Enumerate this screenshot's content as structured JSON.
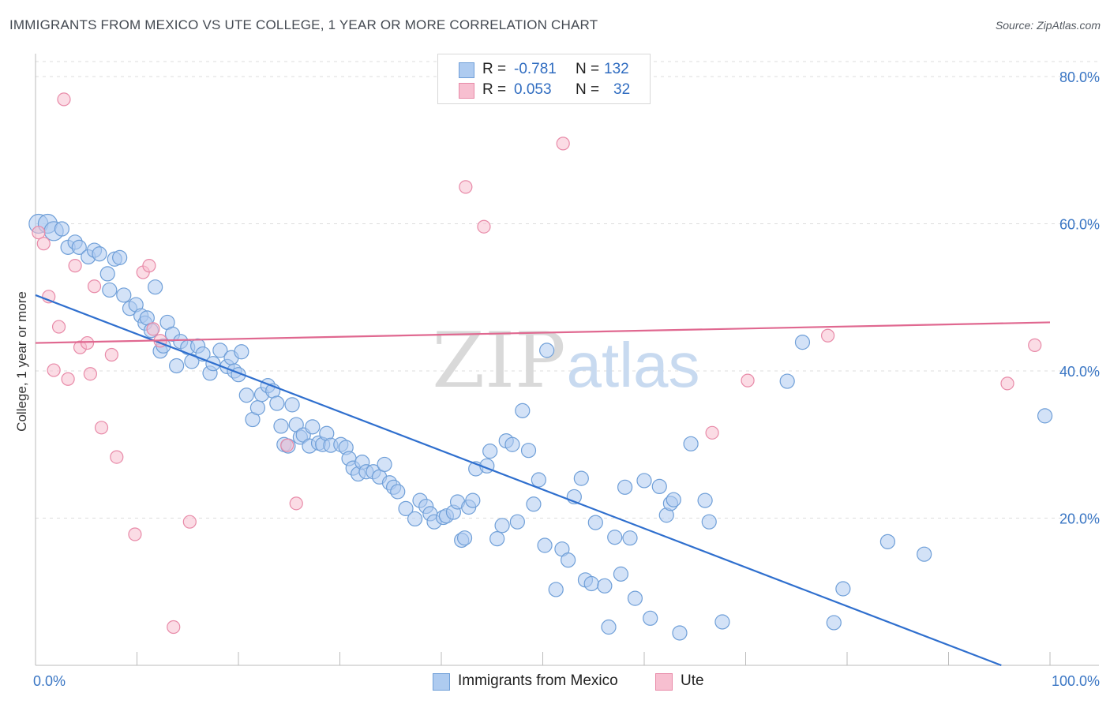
{
  "header": {
    "title": "IMMIGRANTS FROM MEXICO VS UTE COLLEGE, 1 YEAR OR MORE CORRELATION CHART",
    "source": "Source: ZipAtlas.com"
  },
  "watermark": {
    "part1": "ZIP",
    "part2": "atlas"
  },
  "legend": {
    "rows": [
      {
        "r_label": "R =",
        "r_value": "-0.781",
        "n_label": "N =",
        "n_value": "132"
      },
      {
        "r_label": "R =",
        "r_value": "0.053",
        "n_label": "N =",
        "n_value": "32"
      }
    ]
  },
  "bottom_legend": {
    "items": [
      {
        "label": "Immigrants from Mexico"
      },
      {
        "label": "Ute"
      }
    ]
  },
  "colors": {
    "blue_fill": "#aecbf0",
    "blue_stroke": "#6f9fd8",
    "blue_line": "#2f6fce",
    "pink_fill": "#f7bfd0",
    "pink_stroke": "#e88aa8",
    "pink_line": "#e06890",
    "tick_text": "#3a76c4",
    "grid": "#dddddd"
  },
  "chart_data": {
    "type": "scatter",
    "title": "IMMIGRANTS FROM MEXICO VS UTE COLLEGE, 1 YEAR OR MORE CORRELATION CHART",
    "xlabel": "",
    "ylabel": "College, 1 year or more",
    "xlim": [
      0,
      100
    ],
    "ylim": [
      0,
      80
    ],
    "x_ticks": [
      "0.0%",
      "100.0%"
    ],
    "y_ticks": [
      {
        "value": 20,
        "label": "20.0%"
      },
      {
        "value": 40,
        "label": "40.0%"
      },
      {
        "value": 60,
        "label": "60.0%"
      },
      {
        "value": 80,
        "label": "80.0%"
      }
    ],
    "grid": "horizontal-dashed",
    "legend_position": "top-center",
    "series": [
      {
        "name": "Immigrants from Mexico",
        "color": "#aecbf0",
        "trend": {
          "x": [
            0,
            95.2
          ],
          "y": [
            50.3,
            0
          ]
        },
        "points": [
          [
            0.3,
            60.0
          ],
          [
            1.2,
            60.0
          ],
          [
            1.8,
            59.0
          ],
          [
            2.6,
            59.3
          ],
          [
            3.2,
            56.8
          ],
          [
            3.9,
            57.5
          ],
          [
            4.3,
            56.8
          ],
          [
            5.2,
            55.5
          ],
          [
            5.8,
            56.4
          ],
          [
            6.3,
            55.9
          ],
          [
            7.1,
            53.2
          ],
          [
            7.3,
            51.0
          ],
          [
            7.8,
            55.2
          ],
          [
            8.3,
            55.4
          ],
          [
            8.7,
            50.3
          ],
          [
            9.3,
            48.5
          ],
          [
            9.9,
            49.0
          ],
          [
            10.4,
            47.5
          ],
          [
            10.8,
            46.5
          ],
          [
            11.0,
            47.2
          ],
          [
            11.4,
            45.5
          ],
          [
            11.8,
            51.4
          ],
          [
            12.3,
            42.7
          ],
          [
            12.6,
            43.4
          ],
          [
            13.0,
            46.6
          ],
          [
            13.5,
            45.0
          ],
          [
            13.9,
            40.7
          ],
          [
            14.3,
            44.0
          ],
          [
            15.0,
            43.2
          ],
          [
            15.4,
            41.3
          ],
          [
            16.0,
            43.4
          ],
          [
            16.5,
            42.3
          ],
          [
            17.2,
            39.7
          ],
          [
            17.5,
            41.0
          ],
          [
            18.2,
            42.8
          ],
          [
            18.9,
            40.6
          ],
          [
            19.3,
            41.8
          ],
          [
            19.6,
            40.0
          ],
          [
            20.0,
            39.5
          ],
          [
            20.3,
            42.6
          ],
          [
            20.8,
            36.7
          ],
          [
            21.4,
            33.4
          ],
          [
            21.9,
            35.0
          ],
          [
            22.3,
            36.8
          ],
          [
            22.9,
            38.0
          ],
          [
            23.4,
            37.3
          ],
          [
            23.8,
            35.6
          ],
          [
            24.2,
            32.5
          ],
          [
            24.5,
            30.0
          ],
          [
            24.9,
            29.8
          ],
          [
            25.3,
            35.4
          ],
          [
            25.7,
            32.7
          ],
          [
            26.1,
            31.0
          ],
          [
            26.4,
            31.3
          ],
          [
            27.0,
            29.8
          ],
          [
            27.3,
            32.4
          ],
          [
            27.9,
            30.2
          ],
          [
            28.3,
            30.0
          ],
          [
            28.7,
            31.5
          ],
          [
            29.1,
            29.9
          ],
          [
            30.1,
            30.0
          ],
          [
            30.6,
            29.6
          ],
          [
            30.9,
            28.1
          ],
          [
            31.3,
            26.8
          ],
          [
            31.8,
            26.0
          ],
          [
            32.2,
            27.6
          ],
          [
            32.6,
            26.3
          ],
          [
            33.3,
            26.3
          ],
          [
            33.9,
            25.6
          ],
          [
            34.4,
            27.3
          ],
          [
            34.9,
            24.8
          ],
          [
            35.3,
            24.2
          ],
          [
            35.7,
            23.6
          ],
          [
            36.5,
            21.3
          ],
          [
            37.4,
            19.9
          ],
          [
            37.9,
            22.4
          ],
          [
            38.5,
            21.6
          ],
          [
            38.9,
            20.6
          ],
          [
            39.3,
            19.5
          ],
          [
            40.2,
            20.1
          ],
          [
            40.5,
            20.3
          ],
          [
            41.2,
            20.8
          ],
          [
            41.6,
            22.2
          ],
          [
            42.0,
            17.0
          ],
          [
            42.3,
            17.3
          ],
          [
            42.7,
            21.5
          ],
          [
            43.1,
            22.4
          ],
          [
            43.4,
            26.7
          ],
          [
            44.5,
            27.1
          ],
          [
            44.8,
            29.1
          ],
          [
            45.5,
            17.2
          ],
          [
            46.0,
            19.0
          ],
          [
            46.4,
            30.5
          ],
          [
            47.0,
            30.0
          ],
          [
            47.5,
            19.5
          ],
          [
            48.0,
            34.6
          ],
          [
            48.6,
            29.2
          ],
          [
            49.1,
            21.9
          ],
          [
            49.6,
            25.2
          ],
          [
            50.2,
            16.3
          ],
          [
            50.4,
            42.8
          ],
          [
            51.3,
            10.3
          ],
          [
            51.9,
            15.8
          ],
          [
            52.5,
            14.3
          ],
          [
            53.1,
            22.9
          ],
          [
            53.8,
            25.4
          ],
          [
            54.2,
            11.6
          ],
          [
            54.8,
            11.1
          ],
          [
            55.2,
            19.4
          ],
          [
            56.1,
            10.8
          ],
          [
            56.5,
            5.2
          ],
          [
            57.1,
            17.4
          ],
          [
            57.7,
            12.4
          ],
          [
            58.1,
            24.2
          ],
          [
            58.6,
            17.3
          ],
          [
            59.1,
            9.1
          ],
          [
            60.0,
            25.1
          ],
          [
            60.6,
            6.4
          ],
          [
            61.5,
            24.3
          ],
          [
            62.2,
            20.4
          ],
          [
            62.6,
            22.0
          ],
          [
            62.9,
            22.5
          ],
          [
            63.5,
            4.4
          ],
          [
            64.6,
            30.1
          ],
          [
            66.0,
            22.4
          ],
          [
            66.4,
            19.5
          ],
          [
            67.7,
            5.9
          ],
          [
            74.1,
            38.6
          ],
          [
            75.6,
            43.9
          ],
          [
            78.7,
            5.8
          ],
          [
            79.6,
            10.4
          ],
          [
            84.0,
            16.8
          ],
          [
            87.6,
            15.1
          ],
          [
            99.5,
            33.9
          ]
        ]
      },
      {
        "name": "Ute",
        "color": "#f7bfd0",
        "trend": {
          "x": [
            0,
            100
          ],
          "y": [
            43.8,
            46.6
          ]
        },
        "points": [
          [
            0.3,
            58.8
          ],
          [
            0.8,
            57.3
          ],
          [
            1.3,
            50.1
          ],
          [
            1.8,
            40.1
          ],
          [
            2.3,
            46.0
          ],
          [
            2.8,
            76.9
          ],
          [
            3.2,
            38.9
          ],
          [
            3.9,
            54.3
          ],
          [
            4.4,
            43.2
          ],
          [
            5.1,
            43.8
          ],
          [
            5.4,
            39.6
          ],
          [
            5.8,
            51.5
          ],
          [
            6.5,
            32.3
          ],
          [
            7.5,
            42.2
          ],
          [
            8.0,
            28.3
          ],
          [
            9.8,
            17.8
          ],
          [
            10.6,
            53.4
          ],
          [
            11.2,
            54.3
          ],
          [
            11.6,
            45.7
          ],
          [
            12.3,
            44.1
          ],
          [
            13.6,
            5.2
          ],
          [
            15.2,
            19.5
          ],
          [
            24.8,
            29.9
          ],
          [
            25.7,
            22.0
          ],
          [
            42.4,
            65.0
          ],
          [
            44.2,
            59.6
          ],
          [
            52.0,
            70.9
          ],
          [
            66.7,
            31.6
          ],
          [
            70.2,
            38.7
          ],
          [
            78.1,
            44.8
          ],
          [
            95.8,
            38.3
          ],
          [
            98.5,
            43.5
          ]
        ]
      }
    ]
  },
  "axes": {
    "y_title": "College, 1 year or more",
    "x_min_label": "0.0%",
    "x_max_label": "100.0%"
  }
}
